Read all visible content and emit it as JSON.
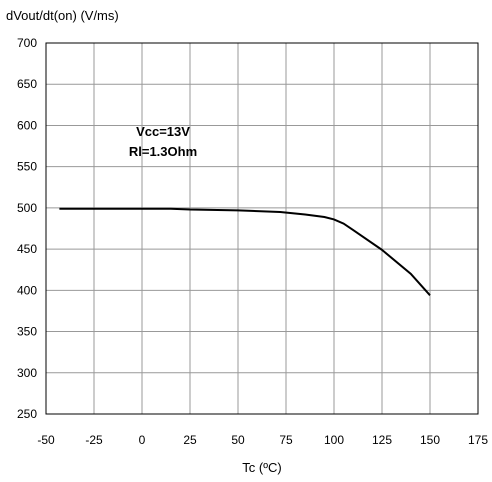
{
  "chart_data": {
    "type": "line",
    "ylabel": "dVout/dt(on) (V/ms)",
    "xlabel": "Tc (ºC)",
    "xlim": [
      -50,
      175
    ],
    "ylim": [
      250,
      700
    ],
    "x_ticks": [
      -50,
      -25,
      0,
      25,
      50,
      75,
      100,
      125,
      150,
      175
    ],
    "y_ticks": [
      250,
      300,
      350,
      400,
      450,
      500,
      550,
      600,
      650,
      700
    ],
    "grid": true,
    "annotations": [
      "Vcc=13V",
      "Rl=1.3Ohm"
    ],
    "series": [
      {
        "x": [
          -43,
          -25,
          0,
          15,
          25,
          50,
          72,
          85,
          95,
          100,
          105,
          110,
          125,
          140,
          150
        ],
        "y": [
          499,
          499,
          499,
          499,
          498,
          497,
          495,
          492,
          489,
          486,
          481,
          473,
          449,
          420,
          394
        ]
      }
    ]
  }
}
